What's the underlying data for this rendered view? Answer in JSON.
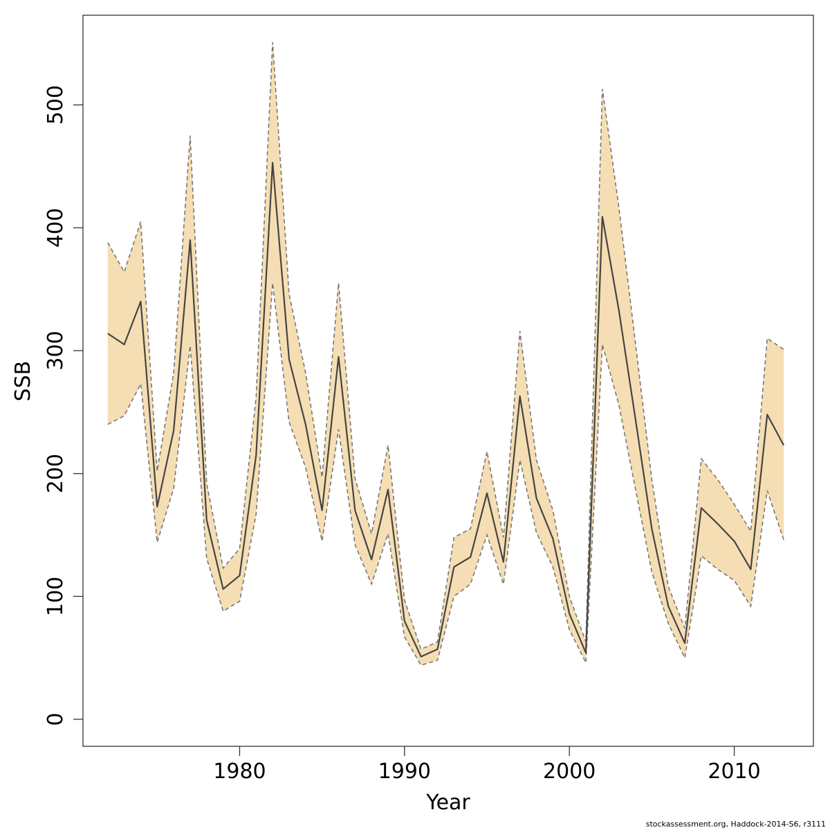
{
  "chart_data": {
    "type": "area",
    "xlabel": "Year",
    "ylabel": "SSB",
    "xlim": [
      1970.5,
      2014.8
    ],
    "ylim": [
      -22,
      573
    ],
    "x_ticks": [
      1980,
      1990,
      2000,
      2010
    ],
    "y_ticks": [
      0,
      100,
      200,
      300,
      400,
      500
    ],
    "grid": false,
    "legend": "none",
    "colors": {
      "band": "#f5deb3",
      "line": "#444444",
      "bound": "#777777",
      "frame": "#333333"
    },
    "x": [
      1972,
      1973,
      1974,
      1975,
      1976,
      1977,
      1978,
      1979,
      1980,
      1981,
      1982,
      1983,
      1984,
      1985,
      1986,
      1987,
      1988,
      1989,
      1990,
      1991,
      1992,
      1993,
      1994,
      1995,
      1996,
      1997,
      1998,
      1999,
      2000,
      2001,
      2002,
      2003,
      2004,
      2005,
      2006,
      2007,
      2008,
      2009,
      2010,
      2011,
      2012,
      2013
    ],
    "series": [
      {
        "role": "estimate",
        "values": [
          314,
          305,
          340,
          173,
          235,
          390,
          162,
          106,
          117,
          215,
          453,
          293,
          240,
          170,
          295,
          170,
          130,
          187,
          80,
          51,
          57,
          124,
          132,
          184,
          128,
          263,
          180,
          147,
          86,
          54,
          409,
          333,
          245,
          155,
          92,
          62,
          172,
          159,
          145,
          122,
          248,
          223
        ]
      },
      {
        "role": "upper",
        "values": [
          388,
          364,
          405,
          202,
          282,
          475,
          192,
          123,
          139,
          262,
          551,
          346,
          282,
          197,
          355,
          196,
          151,
          223,
          97,
          57,
          63,
          148,
          155,
          218,
          148,
          316,
          211,
          170,
          100,
          63,
          513,
          417,
          307,
          195,
          108,
          74,
          212,
          195,
          175,
          153,
          310,
          301
        ]
      },
      {
        "role": "lower",
        "values": [
          240,
          247,
          273,
          144,
          188,
          304,
          131,
          88,
          96,
          167,
          355,
          242,
          205,
          145,
          236,
          142,
          110,
          151,
          67,
          44,
          48,
          100,
          110,
          150,
          110,
          211,
          152,
          124,
          73,
          46,
          305,
          256,
          188,
          120,
          78,
          50,
          133,
          122,
          113,
          92,
          186,
          146
        ]
      }
    ]
  },
  "footer": {
    "credit": "stockassessment.org, Haddock-2014-S6, r3111"
  }
}
